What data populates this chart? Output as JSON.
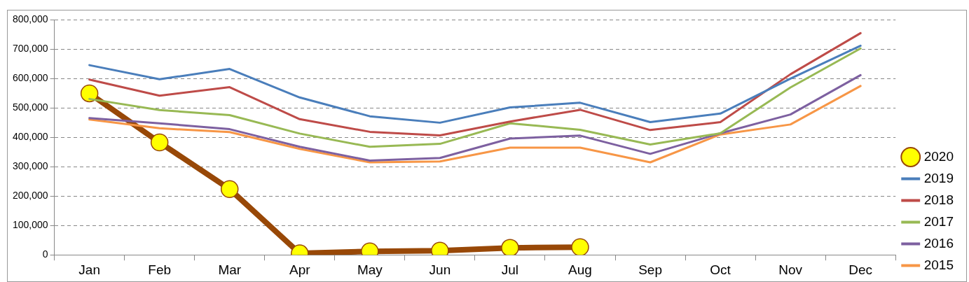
{
  "chart_data": {
    "type": "line",
    "categories": [
      "Jan",
      "Feb",
      "Mar",
      "Apr",
      "May",
      "Jun",
      "Jul",
      "Aug",
      "Sep",
      "Oct",
      "Nov",
      "Dec"
    ],
    "series": [
      {
        "name": "2020",
        "color": "#984807",
        "marker": "circle",
        "values": [
          550000,
          383000,
          224000,
          5000,
          12000,
          14000,
          24000,
          26000,
          null,
          null,
          null,
          null
        ]
      },
      {
        "name": "2019",
        "color": "#4a7ebb",
        "values": [
          646000,
          598000,
          633000,
          536000,
          472000,
          450000,
          502000,
          518000,
          452000,
          481000,
          600000,
          712000
        ]
      },
      {
        "name": "2018",
        "color": "#be4b48",
        "values": [
          597000,
          542000,
          571000,
          462000,
          419000,
          407000,
          454000,
          494000,
          425000,
          452000,
          615000,
          755000
        ]
      },
      {
        "name": "2017",
        "color": "#98b954",
        "values": [
          531000,
          493000,
          476000,
          413000,
          368000,
          378000,
          448000,
          426000,
          376000,
          414000,
          570000,
          703000
        ]
      },
      {
        "name": "2016",
        "color": "#7d60a0",
        "values": [
          466000,
          448000,
          428000,
          368000,
          321000,
          330000,
          396000,
          406000,
          344000,
          414000,
          478000,
          612000
        ]
      },
      {
        "name": "2015",
        "color": "#f79646",
        "values": [
          461000,
          431000,
          418000,
          361000,
          315000,
          318000,
          365000,
          365000,
          315000,
          410000,
          444000,
          575000
        ]
      }
    ],
    "ylim": [
      0,
      800000
    ],
    "yticks": [
      {
        "value": 0,
        "label": "0"
      },
      {
        "value": 100000,
        "label": "100,000"
      },
      {
        "value": 200000,
        "label": "200,000"
      },
      {
        "value": 300000,
        "label": "300,000"
      },
      {
        "value": 400000,
        "label": "400,000"
      },
      {
        "value": 500000,
        "label": "500,000"
      },
      {
        "value": 600000,
        "label": "600,000"
      },
      {
        "value": 700000,
        "label": "700,000"
      },
      {
        "value": 800000,
        "label": "800,000"
      }
    ],
    "grid": "y",
    "legend": "right"
  }
}
